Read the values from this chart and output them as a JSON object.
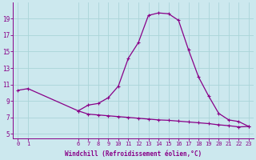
{
  "xlabel": "Windchill (Refroidissement éolien,°C)",
  "upper_x": [
    0,
    1,
    6,
    7,
    8,
    9,
    10,
    11,
    12,
    13,
    14,
    15,
    16,
    17,
    18,
    19,
    20,
    21,
    22,
    23
  ],
  "upper_y": [
    10.3,
    10.5,
    7.8,
    8.5,
    8.7,
    9.4,
    10.8,
    14.2,
    16.1,
    19.4,
    19.7,
    19.6,
    18.8,
    15.2,
    11.9,
    9.6,
    7.5,
    6.7,
    6.5,
    5.9
  ],
  "lower_x": [
    6,
    7,
    8,
    9,
    10,
    11,
    12,
    13,
    14,
    15,
    16,
    17,
    18,
    19,
    20,
    21,
    22,
    23
  ],
  "lower_y": [
    7.8,
    7.4,
    7.3,
    7.2,
    7.1,
    7.0,
    6.9,
    6.8,
    6.7,
    6.65,
    6.55,
    6.45,
    6.35,
    6.25,
    6.1,
    6.0,
    5.85,
    5.9
  ],
  "line_color": "#880088",
  "bg_color": "#cce8ee",
  "grid_color": "#aad4d8",
  "ylim": [
    4.5,
    21.0
  ],
  "xlim": [
    -0.5,
    23.5
  ],
  "yticks": [
    5,
    7,
    9,
    11,
    13,
    15,
    17,
    19
  ],
  "xticks": [
    0,
    1,
    6,
    7,
    8,
    9,
    10,
    11,
    12,
    13,
    14,
    15,
    16,
    17,
    18,
    19,
    20,
    21,
    22,
    23
  ],
  "tick_fontsize": 5.0,
  "xlabel_fontsize": 5.5
}
